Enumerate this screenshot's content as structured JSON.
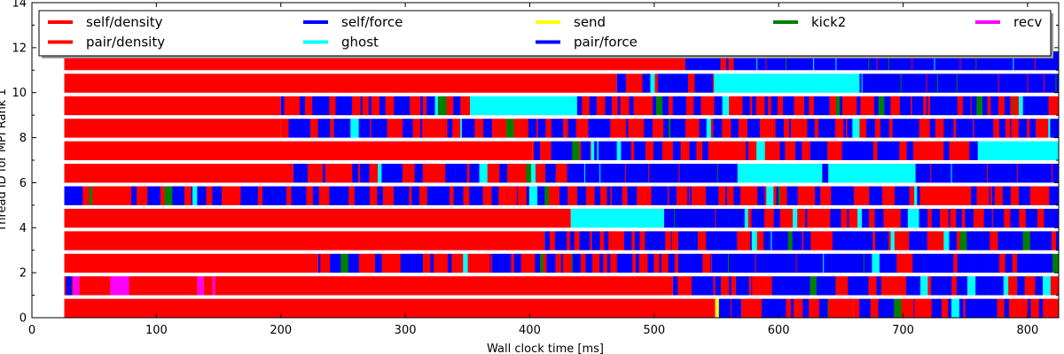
{
  "chart_data": {
    "type": "bar",
    "orientation": "horizontal-timeline",
    "xlabel": "Wall clock time [ms]",
    "ylabel": "Thread ID for MPI Rank 1",
    "xlim": [
      0,
      825
    ],
    "ylim": [
      0,
      14
    ],
    "x_ticks": [
      0,
      100,
      200,
      300,
      400,
      500,
      600,
      700,
      800
    ],
    "y_ticks": [
      0,
      2,
      4,
      6,
      8,
      10,
      12,
      14
    ],
    "grid": false,
    "legend_position": "top",
    "legend": [
      {
        "name": "self/density",
        "color": "#ff0000"
      },
      {
        "name": "pair/density",
        "color": "#ff0000"
      },
      {
        "name": "self/force",
        "color": "#0000ff"
      },
      {
        "name": "ghost",
        "color": "#00ffff"
      },
      {
        "name": "send",
        "color": "#ffff00"
      },
      {
        "name": "pair/force",
        "color": "#0000ff"
      },
      {
        "name": "kick2",
        "color": "#008000"
      },
      {
        "name": "recv",
        "color": "#ff00ff"
      }
    ],
    "threads": [
      {
        "id": 0,
        "segments": [
          [
            26,
            549,
            "red"
          ],
          [
            549,
            552,
            "yellow"
          ],
          [
            552,
            570,
            "blue"
          ],
          [
            570,
            640,
            "mixed"
          ],
          [
            640,
            660,
            "red"
          ],
          [
            660,
            825,
            "mixed"
          ]
        ]
      },
      {
        "id": 1,
        "segments": [
          [
            26,
            33,
            "mixed"
          ],
          [
            33,
            38,
            "magenta"
          ],
          [
            38,
            63,
            "red"
          ],
          [
            63,
            78,
            "magenta"
          ],
          [
            78,
            133,
            "red"
          ],
          [
            133,
            138,
            "magenta"
          ],
          [
            138,
            145,
            "red"
          ],
          [
            145,
            147,
            "magenta"
          ],
          [
            147,
            515,
            "red"
          ],
          [
            515,
            560,
            "mixed"
          ],
          [
            560,
            825,
            "blue-mixed"
          ]
        ]
      },
      {
        "id": 2,
        "segments": [
          [
            26,
            230,
            "red"
          ],
          [
            230,
            545,
            "mixed"
          ],
          [
            545,
            675,
            "blue"
          ],
          [
            675,
            681,
            "cyan"
          ],
          [
            681,
            825,
            "blue-mixed"
          ]
        ]
      },
      {
        "id": 3,
        "segments": [
          [
            26,
            412,
            "red"
          ],
          [
            412,
            450,
            "mixed"
          ],
          [
            450,
            825,
            "blue-mixed"
          ]
        ]
      },
      {
        "id": 4,
        "segments": [
          [
            26,
            433,
            "red"
          ],
          [
            433,
            508,
            "cyan"
          ],
          [
            508,
            560,
            "blue"
          ],
          [
            560,
            825,
            "mixed"
          ]
        ]
      },
      {
        "id": 5,
        "segments": [
          [
            26,
            330,
            "mixed"
          ],
          [
            330,
            825,
            "mixed"
          ]
        ]
      },
      {
        "id": 6,
        "segments": [
          [
            26,
            210,
            "red"
          ],
          [
            210,
            430,
            "mixed"
          ],
          [
            430,
            567,
            "blue"
          ],
          [
            567,
            635,
            "cyan"
          ],
          [
            635,
            640,
            "blue"
          ],
          [
            640,
            710,
            "cyan"
          ],
          [
            710,
            825,
            "blue"
          ]
        ]
      },
      {
        "id": 7,
        "segments": [
          [
            26,
            402,
            "red"
          ],
          [
            402,
            760,
            "mixed"
          ],
          [
            760,
            825,
            "cyan"
          ]
        ]
      },
      {
        "id": 8,
        "segments": [
          [
            26,
            200,
            "red"
          ],
          [
            200,
            825,
            "mixed"
          ]
        ]
      },
      {
        "id": 9,
        "segments": [
          [
            26,
            200,
            "red"
          ],
          [
            200,
            352,
            "mixed"
          ],
          [
            352,
            438,
            "cyan"
          ],
          [
            438,
            825,
            "mixed"
          ]
        ]
      },
      {
        "id": 10,
        "segments": [
          [
            26,
            470,
            "red"
          ],
          [
            470,
            548,
            "mixed"
          ],
          [
            548,
            665,
            "cyan"
          ],
          [
            665,
            825,
            "blue"
          ]
        ]
      },
      {
        "id": 11,
        "segments": [
          [
            26,
            525,
            "red"
          ],
          [
            525,
            575,
            "mixed"
          ],
          [
            575,
            825,
            "blue"
          ]
        ]
      }
    ]
  }
}
